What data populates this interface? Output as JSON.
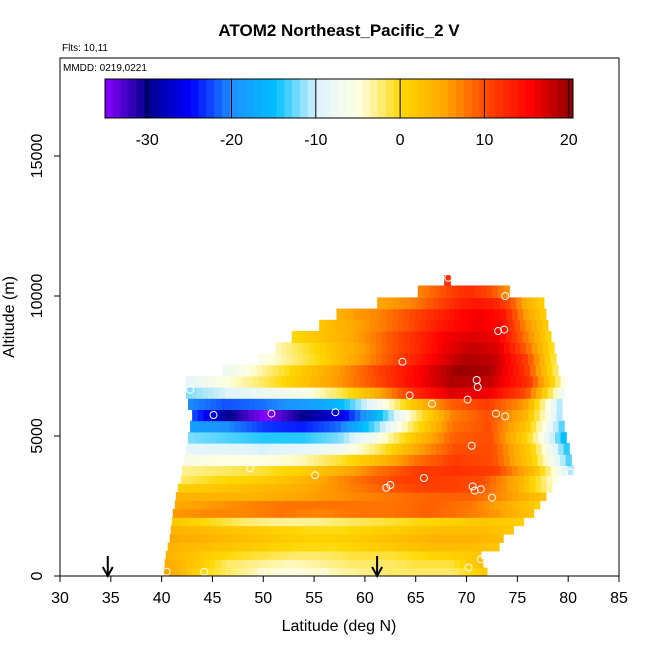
{
  "chart_data": {
    "type": "heatmap",
    "title": "ATOM2 Northeast_Pacific_2 V",
    "flights_label": "Flts: 10,11",
    "dates_label": "MMDD: 0219,0221",
    "xlabel": "Latitude (deg N)",
    "ylabel": "Altitude (m)",
    "xlim": [
      30,
      85
    ],
    "ylim": [
      0,
      18500
    ],
    "x_ticks": [
      30,
      35,
      40,
      45,
      50,
      55,
      60,
      65,
      70,
      75,
      80,
      85
    ],
    "y_ticks": [
      0,
      5000,
      10000,
      15000
    ],
    "colorbar": {
      "range": [
        -35,
        20.5
      ],
      "ticks": [
        -30,
        -20,
        -10,
        0,
        10,
        20
      ],
      "colors": [
        "#8b00ff",
        "#00008b",
        "#0000ff",
        "#1e90ff",
        "#00bfff",
        "#e0f4ff",
        "#ffffe0",
        "#ffd700",
        "#ffa500",
        "#ff4500",
        "#ff0000",
        "#8b0000"
      ]
    },
    "bands": [
      {
        "alt": 150,
        "lat": [
          40.2,
          72.0
        ],
        "v": [
          6,
          1,
          -2,
          -4,
          -5,
          -4,
          -3,
          -2,
          -2,
          -2,
          2
        ]
      },
      {
        "alt": 450,
        "lat": [
          40.3,
          71.6
        ],
        "v": [
          5,
          2,
          -2,
          -3,
          -4,
          -3,
          -2,
          -2,
          -1,
          -1,
          3
        ]
      },
      {
        "alt": 750,
        "lat": [
          40.4,
          71.4
        ],
        "v": [
          4,
          2,
          0,
          -1,
          -2,
          -2,
          -1,
          -1,
          0,
          1,
          2
        ]
      },
      {
        "alt": 1050,
        "lat": [
          40.6,
          73.2
        ],
        "v": [
          4,
          3,
          2,
          1,
          0,
          0,
          1,
          2,
          3,
          3,
          2
        ]
      },
      {
        "alt": 1350,
        "lat": [
          40.8,
          73.6
        ],
        "v": [
          5,
          4,
          3,
          2,
          1,
          1,
          2,
          3,
          4,
          4,
          3
        ]
      },
      {
        "alt": 1650,
        "lat": [
          40.9,
          74.6
        ],
        "v": [
          4,
          3,
          2,
          1,
          0,
          0,
          1,
          2,
          3,
          3,
          2
        ]
      },
      {
        "alt": 1950,
        "lat": [
          41.0,
          75.6
        ],
        "v": [
          2,
          0,
          -2,
          -3,
          -3,
          -2,
          -1,
          0,
          1,
          2,
          1
        ]
      },
      {
        "alt": 2250,
        "lat": [
          41.1,
          76.6
        ],
        "v": [
          6,
          7,
          7,
          8,
          7,
          8,
          8,
          9,
          8,
          6,
          2
        ]
      },
      {
        "alt": 2550,
        "lat": [
          41.3,
          77.2
        ],
        "v": [
          5,
          6,
          7,
          8,
          8,
          8,
          8,
          9,
          8,
          5,
          1
        ]
      },
      {
        "alt": 2850,
        "lat": [
          41.4,
          77.8
        ],
        "v": [
          4,
          4,
          4,
          5,
          6,
          7,
          8,
          9,
          9,
          6,
          2
        ]
      },
      {
        "alt": 3150,
        "lat": [
          41.6,
          78.4
        ],
        "v": [
          1,
          2,
          3,
          4,
          6,
          8,
          10,
          11,
          10,
          5,
          -4
        ]
      },
      {
        "alt": 3450,
        "lat": [
          41.9,
          79.0
        ],
        "v": [
          -2,
          0,
          1,
          3,
          6,
          9,
          11,
          11,
          10,
          4,
          -6
        ]
      },
      {
        "alt": 3750,
        "lat": [
          42.0,
          80.5
        ],
        "v": [
          -3,
          -2,
          -1,
          1,
          4,
          8,
          11,
          12,
          11,
          3,
          -12
        ]
      },
      {
        "alt": 4150,
        "lat": [
          42.2,
          80.3
        ],
        "v": [
          -6,
          -5,
          -5,
          -4,
          -1,
          3,
          8,
          11,
          10,
          1,
          -14
        ]
      },
      {
        "alt": 4550,
        "lat": [
          42.4,
          80.1
        ],
        "v": [
          -9,
          -9,
          -10,
          -9,
          -7,
          -2,
          5,
          10,
          10,
          1,
          -15
        ]
      },
      {
        "alt": 4950,
        "lat": [
          42.6,
          79.8
        ],
        "v": [
          -12,
          -13,
          -14,
          -14,
          -12,
          -6,
          2,
          9,
          10,
          0,
          -16
        ]
      },
      {
        "alt": 5350,
        "lat": [
          42.8,
          79.6
        ],
        "v": [
          -18,
          -20,
          -23,
          -24,
          -21,
          -12,
          -1,
          8,
          10,
          2,
          -14
        ]
      },
      {
        "alt": 5750,
        "lat": [
          43.0,
          79.4
        ],
        "v": [
          -22,
          -30,
          -35,
          -30,
          -26,
          -16,
          -3,
          7,
          10,
          4,
          -12
        ]
      },
      {
        "alt": 6150,
        "lat": [
          42.6,
          79.4
        ],
        "v": [
          -20,
          -22,
          -21,
          -19,
          -16,
          -8,
          2,
          9,
          11,
          6,
          -12
        ]
      },
      {
        "alt": 6550,
        "lat": [
          42.4,
          79.6
        ],
        "v": [
          -12,
          -10,
          -8,
          -6,
          -2,
          4,
          12,
          17,
          16,
          10,
          -8
        ]
      },
      {
        "alt": 6950,
        "lat": [
          42.4,
          79.8
        ],
        "v": [
          -9,
          -5,
          -2,
          2,
          6,
          10,
          15,
          19,
          18,
          12,
          -6
        ]
      },
      {
        "alt": 7350,
        "lat": [
          46.0,
          79.0
        ],
        "v": [
          -8,
          -4,
          0,
          4,
          8,
          12,
          16,
          20,
          19,
          12,
          -3
        ]
      },
      {
        "alt": 7750,
        "lat": [
          49.5,
          78.8
        ],
        "v": [
          -6,
          -3,
          0,
          4,
          8,
          12,
          16,
          19,
          18,
          11,
          -2
        ]
      },
      {
        "alt": 8150,
        "lat": [
          51.2,
          78.6
        ],
        "v": [
          -4,
          -1,
          2,
          5,
          9,
          12,
          16,
          18,
          17,
          9,
          -1
        ]
      },
      {
        "alt": 8550,
        "lat": [
          52.8,
          78.3
        ],
        "v": [
          0,
          2,
          4,
          7,
          10,
          13,
          16,
          17,
          16,
          8,
          0
        ]
      },
      {
        "alt": 8950,
        "lat": [
          55.5,
          78.0
        ],
        "v": [
          2,
          4,
          6,
          8,
          10,
          13,
          15,
          16,
          15,
          7,
          1
        ]
      },
      {
        "alt": 9350,
        "lat": [
          57.2,
          77.8
        ],
        "v": [
          4,
          6,
          7,
          9,
          11,
          13,
          15,
          16,
          14,
          6,
          1
        ]
      },
      {
        "alt": 9750,
        "lat": [
          61.2,
          77.6
        ],
        "v": [
          5,
          6,
          7,
          9,
          11,
          13,
          14,
          13,
          10,
          4,
          1
        ]
      },
      {
        "alt": 10150,
        "lat": [
          65.2,
          74.2
        ],
        "v": [
          7,
          8,
          9,
          10,
          11,
          12,
          12,
          11,
          10,
          8,
          6
        ]
      },
      {
        "alt": 10600,
        "lat": [
          67.8,
          68.4
        ],
        "v": [
          12,
          12,
          12,
          12,
          12,
          12,
          12,
          12,
          12,
          12,
          12
        ]
      }
    ],
    "markers": [
      [
        40.5,
        150
      ],
      [
        44.2,
        150
      ],
      [
        49.8,
        150
      ],
      [
        56.0,
        150
      ],
      [
        70.2,
        300
      ],
      [
        71.4,
        600
      ],
      [
        42.8,
        6650
      ],
      [
        45.1,
        5750
      ],
      [
        48.7,
        3850
      ],
      [
        50.8,
        5800
      ],
      [
        57.1,
        5850
      ],
      [
        55.1,
        3600
      ],
      [
        62.1,
        3150
      ],
      [
        62.5,
        3250
      ],
      [
        63.7,
        7650
      ],
      [
        64.4,
        6450
      ],
      [
        65.8,
        3500
      ],
      [
        66.6,
        6150
      ],
      [
        68.2,
        10650
      ],
      [
        70.1,
        6300
      ],
      [
        70.5,
        4650
      ],
      [
        70.6,
        3200
      ],
      [
        70.8,
        3050
      ],
      [
        71.0,
        7000
      ],
      [
        71.1,
        6750
      ],
      [
        71.4,
        3100
      ],
      [
        72.5,
        2800
      ],
      [
        72.9,
        5800
      ],
      [
        73.1,
        8750
      ],
      [
        73.7,
        8800
      ],
      [
        73.8,
        5700
      ],
      [
        73.8,
        10000
      ],
      [
        79.7,
        7000
      ],
      [
        80.2,
        3700
      ]
    ],
    "arrows": [
      34.7,
      61.2
    ]
  }
}
